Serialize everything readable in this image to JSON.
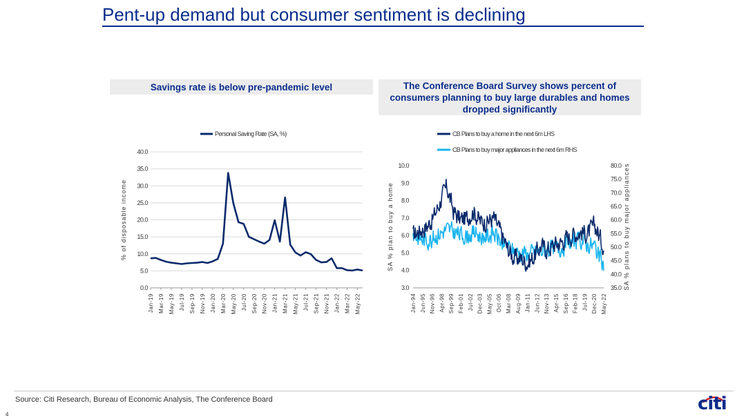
{
  "slide": {
    "title": "Pent-up demand but consumer sentiment is declining",
    "source": "Source: Citi Research, Bureau of Economic Analysis, The Conference Board",
    "page_number": "4",
    "logo_text": "citi",
    "logo_icon": "citi-arc-icon"
  },
  "left_panel": {
    "header": "Savings rate is below pre-pandemic level"
  },
  "right_panel": {
    "header": "The Conference Board Survey shows percent of consumers planning to buy large durables and homes dropped significantly"
  },
  "chart_data": [
    {
      "type": "line",
      "title": "Savings rate is below pre-pandemic level",
      "ylabel": "% of disposable income",
      "ylim": [
        0,
        40
      ],
      "yticks": [
        "0.0",
        "5.0",
        "10.0",
        "15.0",
        "20.0",
        "25.0",
        "30.0",
        "35.0",
        "40.0"
      ],
      "xticks": [
        "Jan-19",
        "Mar-19",
        "May-19",
        "Jul-19",
        "Sep-19",
        "Nov-19",
        "Jan-20",
        "Mar-20",
        "May-20",
        "Jul-20",
        "Sep-20",
        "Nov-20",
        "Jan-21",
        "Mar-21",
        "May-21",
        "Jul-21",
        "Sep-21",
        "Nov-21",
        "Jan-22",
        "Mar-22",
        "May-22"
      ],
      "legend_position": "top",
      "grid": "horizontal",
      "series": [
        {
          "name": "Personal Saving Rate (SA, %)",
          "color": "#0a2a6b",
          "x": [
            "Jan-19",
            "Feb-19",
            "Mar-19",
            "Apr-19",
            "May-19",
            "Jun-19",
            "Jul-19",
            "Aug-19",
            "Sep-19",
            "Oct-19",
            "Nov-19",
            "Dec-19",
            "Jan-20",
            "Feb-20",
            "Mar-20",
            "Apr-20",
            "May-20",
            "Jun-20",
            "Jul-20",
            "Aug-20",
            "Sep-20",
            "Oct-20",
            "Nov-20",
            "Dec-20",
            "Jan-21",
            "Feb-21",
            "Mar-21",
            "Apr-21",
            "May-21",
            "Jun-21",
            "Jul-21",
            "Aug-21",
            "Sep-21",
            "Oct-21",
            "Nov-21",
            "Dec-21",
            "Jan-22",
            "Feb-22",
            "Mar-22",
            "Apr-22",
            "May-22",
            "Jun-22"
          ],
          "values": [
            8.7,
            8.8,
            8.2,
            7.7,
            7.4,
            7.2,
            7.0,
            7.2,
            7.3,
            7.4,
            7.6,
            7.3,
            7.8,
            8.5,
            13.0,
            33.8,
            24.9,
            19.3,
            18.8,
            15.0,
            14.3,
            13.6,
            13.0,
            14.1,
            19.9,
            13.6,
            26.6,
            12.7,
            10.4,
            9.5,
            10.5,
            9.9,
            8.2,
            7.5,
            7.6,
            8.7,
            5.8,
            5.8,
            5.2,
            5.1,
            5.4,
            5.1
          ]
        }
      ]
    },
    {
      "type": "line",
      "title": "The Conference Board Survey shows percent of consumers planning to buy large durables and homes dropped significantly",
      "ylabel": "SA % plan to buy a home",
      "y2label": "SA % plans to buy major appliances",
      "ylim": [
        3.0,
        10.0
      ],
      "y2lim": [
        35.0,
        80.0
      ],
      "yticks": [
        "3.0",
        "4.0",
        "5.0",
        "6.0",
        "7.0",
        "8.0",
        "9.0",
        "10.0"
      ],
      "y2ticks": [
        "35.0",
        "40.0",
        "45.0",
        "50.0",
        "55.0",
        "60.0",
        "65.0",
        "70.0",
        "75.0",
        "80.0"
      ],
      "xticks": [
        "Jan-94",
        "Jun-95",
        "Nov-96",
        "Apr-98",
        "Sep-99",
        "Feb-01",
        "Jul-02",
        "Dec-03",
        "May-05",
        "Oct-06",
        "Mar-08",
        "Aug-09",
        "Jan-11",
        "Jun-12",
        "Nov-13",
        "Apr-15",
        "Sep-16",
        "Feb-18",
        "Jul-19",
        "Dec-20",
        "May-22"
      ],
      "x_range": [
        "Jan-94",
        "May-22"
      ],
      "legend_position": "top",
      "grid": "none",
      "series": [
        {
          "name": "CB Plans to buy a home in the next 6m LHS",
          "axis": "left",
          "color": "#0a2a6b",
          "anchor_years": [
            1994,
            1995,
            1996,
            1997,
            1998,
            1999,
            2000,
            2001,
            2002,
            2003,
            2004,
            2005,
            2006,
            2007,
            2008,
            2009,
            2010,
            2011,
            2012,
            2013,
            2014,
            2015,
            2016,
            2017,
            2018,
            2019,
            2020,
            2021,
            2022.4
          ],
          "values": [
            6.0,
            6.3,
            6.5,
            7.0,
            7.9,
            8.8,
            7.4,
            6.9,
            7.0,
            7.4,
            6.8,
            6.8,
            7.0,
            6.2,
            5.3,
            4.7,
            4.7,
            4.4,
            4.8,
            5.4,
            5.2,
            5.5,
            5.6,
            5.9,
            6.1,
            6.2,
            6.1,
            6.6,
            5.3
          ]
        },
        {
          "name": "CB Plans to buy major appliances in the next 6m RHS",
          "axis": "right",
          "color": "#18b4ee",
          "anchor_years": [
            1994,
            1995,
            1996,
            1997,
            1998,
            1999,
            2000,
            2001,
            2002,
            2003,
            2004,
            2005,
            2006,
            2007,
            2008,
            2009,
            2010,
            2011,
            2012,
            2013,
            2014,
            2015,
            2016,
            2017,
            2018,
            2019,
            2020,
            2021,
            2022.4
          ],
          "values": [
            55.0,
            53.0,
            52.5,
            53.5,
            55.0,
            56.5,
            55.5,
            54.5,
            54.0,
            55.5,
            54.0,
            54.0,
            55.0,
            52.0,
            50.0,
            48.5,
            48.0,
            47.5,
            48.0,
            48.5,
            49.0,
            49.5,
            50.0,
            51.5,
            52.0,
            52.5,
            51.0,
            50.5,
            42.0
          ]
        }
      ]
    }
  ]
}
